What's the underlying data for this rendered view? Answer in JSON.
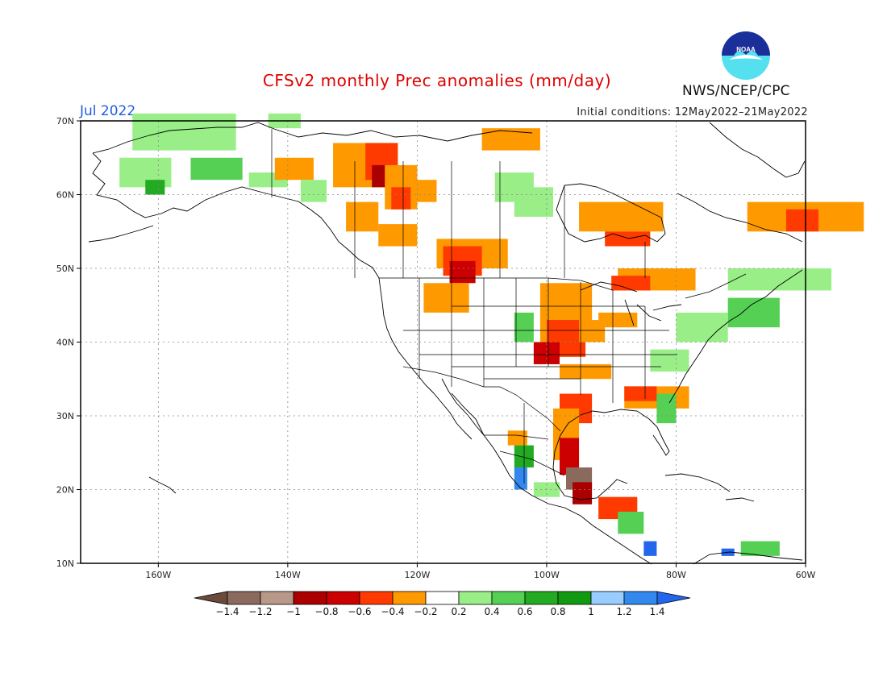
{
  "header": {
    "title": "CFSv2 monthly Prec anomalies (mm/day)",
    "month": "Jul 2022",
    "initial_conditions": "Initial conditions: 12May2022–21May2022",
    "agency": "NWS/NCEP/CPC",
    "logo_text": "NOAA"
  },
  "map": {
    "lat_labels": [
      "70N",
      "60N",
      "50N",
      "40N",
      "30N",
      "20N",
      "10N"
    ],
    "lon_labels": [
      "160W",
      "140W",
      "120W",
      "100W",
      "80W",
      "60W"
    ],
    "lon_range": [
      -172,
      -60
    ],
    "lat_range": [
      10,
      70
    ],
    "grid": "dotted"
  },
  "colorbar": {
    "labels": [
      "−1.4",
      "−1.2",
      "−1",
      "−0.8",
      "−0.6",
      "−0.4",
      "−0.2",
      "0.2",
      "0.4",
      "0.6",
      "0.8",
      "1",
      "1.2",
      "1.4"
    ],
    "colors": [
      "#6b4a3c",
      "#8a6a5c",
      "#b89888",
      "#aa0000",
      "#cc0000",
      "#ff3a00",
      "#ff9900",
      "#ffffff",
      "#99ee88",
      "#55d055",
      "#22aa22",
      "#119911",
      "#99ccff",
      "#3388ee",
      "#2266ee"
    ]
  },
  "anomalies": [
    {
      "lon": -164,
      "lat": 66,
      "w": 16,
      "h": 5,
      "c": "#99ee88"
    },
    {
      "lon": -166,
      "lat": 61,
      "w": 8,
      "h": 4,
      "c": "#99ee88"
    },
    {
      "lon": -162,
      "lat": 60,
      "w": 3,
      "h": 2,
      "c": "#22aa22"
    },
    {
      "lon": -155,
      "lat": 62,
      "w": 8,
      "h": 3,
      "c": "#55d055"
    },
    {
      "lon": -146,
      "lat": 61,
      "w": 6,
      "h": 2,
      "c": "#99ee88"
    },
    {
      "lon": -143,
      "lat": 69,
      "w": 5,
      "h": 2,
      "c": "#99ee88"
    },
    {
      "lon": -142,
      "lat": 62,
      "w": 6,
      "h": 3,
      "c": "#ff9900"
    },
    {
      "lon": -138,
      "lat": 59,
      "w": 4,
      "h": 3,
      "c": "#99ee88"
    },
    {
      "lon": -133,
      "lat": 61,
      "w": 10,
      "h": 6,
      "c": "#ff9900"
    },
    {
      "lon": -129,
      "lat": 63,
      "w": 4,
      "h": 2,
      "c": "#ff9900"
    },
    {
      "lon": -128,
      "lat": 62,
      "w": 5,
      "h": 5,
      "c": "#ff3a00"
    },
    {
      "lon": -127,
      "lat": 61,
      "w": 3,
      "h": 3,
      "c": "#aa0000"
    },
    {
      "lon": -125,
      "lat": 58,
      "w": 5,
      "h": 6,
      "c": "#ff9900"
    },
    {
      "lon": -124,
      "lat": 58,
      "w": 3,
      "h": 3,
      "c": "#ff3a00"
    },
    {
      "lon": -121,
      "lat": 59,
      "w": 4,
      "h": 3,
      "c": "#ff9900"
    },
    {
      "lon": -131,
      "lat": 55,
      "w": 5,
      "h": 4,
      "c": "#ff9900"
    },
    {
      "lon": -126,
      "lat": 53,
      "w": 6,
      "h": 3,
      "c": "#ff9900"
    },
    {
      "lon": -117,
      "lat": 50,
      "w": 11,
      "h": 4,
      "c": "#ff9900"
    },
    {
      "lon": -116,
      "lat": 49,
      "w": 6,
      "h": 4,
      "c": "#ff3a00"
    },
    {
      "lon": -115,
      "lat": 48,
      "w": 4,
      "h": 3,
      "c": "#cc0000"
    },
    {
      "lon": -119,
      "lat": 44,
      "w": 7,
      "h": 4,
      "c": "#ff9900"
    },
    {
      "lon": -108,
      "lat": 59,
      "w": 6,
      "h": 4,
      "c": "#99ee88"
    },
    {
      "lon": -105,
      "lat": 57,
      "w": 6,
      "h": 4,
      "c": "#99ee88"
    },
    {
      "lon": -110,
      "lat": 66,
      "w": 9,
      "h": 3,
      "c": "#ff9900"
    },
    {
      "lon": -95,
      "lat": 55,
      "w": 13,
      "h": 4,
      "c": "#ff9900"
    },
    {
      "lon": -91,
      "lat": 53,
      "w": 7,
      "h": 2,
      "c": "#ff3a00"
    },
    {
      "lon": -69,
      "lat": 55,
      "w": 18,
      "h": 4,
      "c": "#ff9900"
    },
    {
      "lon": -63,
      "lat": 55,
      "w": 5,
      "h": 3,
      "c": "#ff3a00"
    },
    {
      "lon": -89,
      "lat": 47,
      "w": 12,
      "h": 3,
      "c": "#ff9900"
    },
    {
      "lon": -90,
      "lat": 47,
      "w": 6,
      "h": 2,
      "c": "#ff3a00"
    },
    {
      "lon": -92,
      "lat": 42,
      "w": 6,
      "h": 2,
      "c": "#ff9900"
    },
    {
      "lon": -72,
      "lat": 47,
      "w": 16,
      "h": 3,
      "c": "#99ee88"
    },
    {
      "lon": -72,
      "lat": 42,
      "w": 8,
      "h": 4,
      "c": "#55d055"
    },
    {
      "lon": -80,
      "lat": 40,
      "w": 8,
      "h": 4,
      "c": "#99ee88"
    },
    {
      "lon": -101,
      "lat": 40,
      "w": 8,
      "h": 8,
      "c": "#ff9900"
    },
    {
      "lon": -100,
      "lat": 38,
      "w": 6,
      "h": 5,
      "c": "#ff3a00"
    },
    {
      "lon": -102,
      "lat": 37,
      "w": 4,
      "h": 3,
      "c": "#cc0000"
    },
    {
      "lon": -105,
      "lat": 40,
      "w": 3,
      "h": 4,
      "c": "#55d055"
    },
    {
      "lon": -95,
      "lat": 40,
      "w": 4,
      "h": 3,
      "c": "#ff9900"
    },
    {
      "lon": -98,
      "lat": 35,
      "w": 8,
      "h": 2,
      "c": "#ff9900"
    },
    {
      "lon": -88,
      "lat": 31,
      "w": 10,
      "h": 3,
      "c": "#ff9900"
    },
    {
      "lon": -88,
      "lat": 32,
      "w": 5,
      "h": 2,
      "c": "#ff3a00"
    },
    {
      "lon": -83,
      "lat": 29,
      "w": 3,
      "h": 4,
      "c": "#55d055"
    },
    {
      "lon": -84,
      "lat": 36,
      "w": 6,
      "h": 3,
      "c": "#99ee88"
    },
    {
      "lon": -98,
      "lat": 29,
      "w": 5,
      "h": 4,
      "c": "#ff3a00"
    },
    {
      "lon": -99,
      "lat": 24,
      "w": 4,
      "h": 7,
      "c": "#ff9900"
    },
    {
      "lon": -98,
      "lat": 22,
      "w": 3,
      "h": 5,
      "c": "#cc0000"
    },
    {
      "lon": -97,
      "lat": 20,
      "w": 4,
      "h": 3,
      "c": "#8a6a5c"
    },
    {
      "lon": -96,
      "lat": 18,
      "w": 3,
      "h": 3,
      "c": "#aa0000"
    },
    {
      "lon": -92,
      "lat": 16,
      "w": 6,
      "h": 3,
      "c": "#ff3a00"
    },
    {
      "lon": -89,
      "lat": 14,
      "w": 4,
      "h": 3,
      "c": "#55d055"
    },
    {
      "lon": -85,
      "lat": 11,
      "w": 2,
      "h": 2,
      "c": "#2266ee"
    },
    {
      "lon": -106,
      "lat": 26,
      "w": 3,
      "h": 2,
      "c": "#ff9900"
    },
    {
      "lon": -105,
      "lat": 23,
      "w": 3,
      "h": 3,
      "c": "#22aa22"
    },
    {
      "lon": -105,
      "lat": 20,
      "w": 2,
      "h": 3,
      "c": "#3388ee"
    },
    {
      "lon": -102,
      "lat": 19,
      "w": 4,
      "h": 2,
      "c": "#99ee88"
    },
    {
      "lon": -70,
      "lat": 11,
      "w": 6,
      "h": 2,
      "c": "#55d055"
    },
    {
      "lon": -73,
      "lat": 11,
      "w": 2,
      "h": 1,
      "c": "#2266ee"
    }
  ]
}
